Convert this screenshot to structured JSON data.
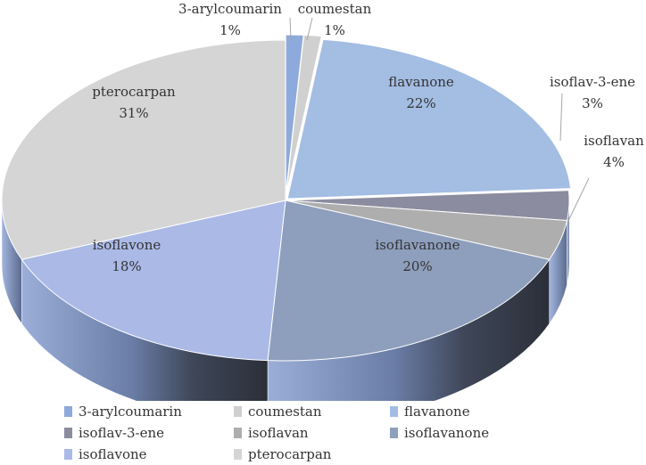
{
  "chart_data": {
    "type": "pie",
    "style": "3d-exploded",
    "categories": [
      "3-arylcoumarin",
      "coumestan",
      "flavanone",
      "isoflav-3-ene",
      "isoflavan",
      "isoflavanone",
      "isoflavone",
      "pterocarpan"
    ],
    "values": [
      1,
      1,
      22,
      3,
      4,
      20,
      18,
      31
    ],
    "labels": [
      "1%",
      "1%",
      "22%",
      "3%",
      "4%",
      "20%",
      "18%",
      "31%"
    ],
    "colors": [
      "#8ea9db",
      "#d0d0d0",
      "#a3bde3",
      "#8c8ca0",
      "#aeaeae",
      "#8e9fbd",
      "#aab9e6",
      "#d5d5d5"
    ],
    "legend_position": "bottom",
    "title": ""
  }
}
